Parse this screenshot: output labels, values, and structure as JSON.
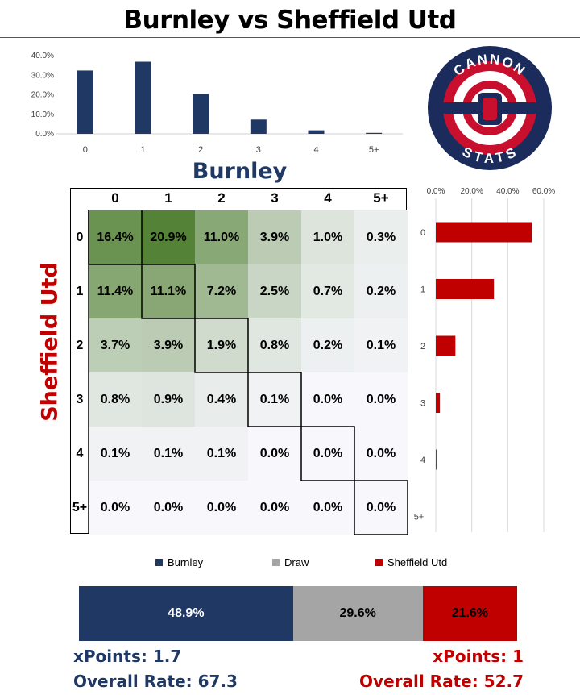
{
  "title": "Burnley vs Sheffield Utd",
  "home_team": "Burnley",
  "away_team": "Sheffield Utd",
  "colors": {
    "home": "#1f3864",
    "draw": "#a5a5a5",
    "away": "#c00000"
  },
  "logo": {
    "top_text": "CANNON",
    "bottom_text": "STATS"
  },
  "chart_data": [
    {
      "type": "bar",
      "name": "home-goals-distribution",
      "categories": [
        "0",
        "1",
        "2",
        "3",
        "4",
        "5+"
      ],
      "values": [
        32.4,
        36.9,
        20.4,
        7.3,
        1.8,
        0.5
      ],
      "ytick_labels": [
        "0.0%",
        "10.0%",
        "20.0%",
        "30.0%",
        "40.0%"
      ],
      "ylim": [
        0,
        40
      ],
      "color": "#1f3864"
    },
    {
      "type": "bar",
      "name": "away-goals-distribution",
      "orientation": "horizontal",
      "categories": [
        "0",
        "1",
        "2",
        "3",
        "4",
        "5+"
      ],
      "values": [
        53.4,
        32.3,
        10.9,
        2.3,
        0.4,
        0.0
      ],
      "xtick_labels": [
        "0.0%",
        "20.0%",
        "40.0%",
        "60.0%"
      ],
      "xlim": [
        0,
        60
      ],
      "color": "#c00000"
    },
    {
      "type": "heatmap",
      "name": "scoreline-matrix",
      "x_labels": [
        "0",
        "1",
        "2",
        "3",
        "4",
        "5+"
      ],
      "y_labels": [
        "0",
        "1",
        "2",
        "3",
        "4",
        "5+"
      ],
      "values": [
        [
          "16.4%",
          "20.9%",
          "11.0%",
          "3.9%",
          "1.0%",
          "0.3%"
        ],
        [
          "11.4%",
          "11.1%",
          "7.2%",
          "2.5%",
          "0.7%",
          "0.2%"
        ],
        [
          "3.7%",
          "3.9%",
          "1.9%",
          "0.8%",
          "0.2%",
          "0.1%"
        ],
        [
          "0.8%",
          "0.9%",
          "0.4%",
          "0.1%",
          "0.0%",
          "0.0%"
        ],
        [
          "0.1%",
          "0.1%",
          "0.1%",
          "0.0%",
          "0.0%",
          "0.0%"
        ],
        [
          "0.0%",
          "0.0%",
          "0.0%",
          "0.0%",
          "0.0%",
          "0.0%"
        ]
      ]
    },
    {
      "type": "bar",
      "name": "outcome-probabilities",
      "orientation": "stacked-horizontal",
      "series": [
        {
          "name": "Burnley",
          "value": 48.9,
          "label": "48.9%"
        },
        {
          "name": "Draw",
          "value": 29.6,
          "label": "29.6%"
        },
        {
          "name": "Sheffield Utd",
          "value": 21.6,
          "label": "21.6%"
        }
      ]
    }
  ],
  "stats": {
    "home_xpoints": "xPoints: 1.7",
    "home_rate": "Overall Rate: 67.3",
    "away_xpoints": "xPoints: 1",
    "away_rate": "Overall Rate: 52.7"
  }
}
